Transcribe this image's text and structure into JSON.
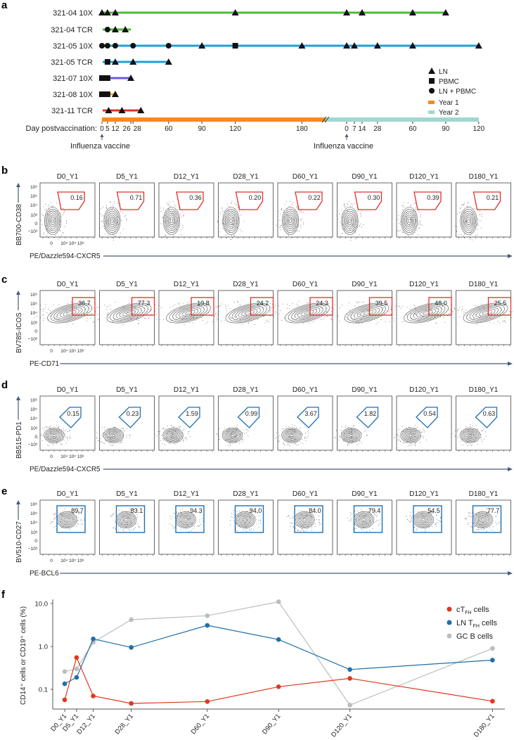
{
  "panel_labels": {
    "a": "a",
    "b": "b",
    "c": "c",
    "d": "d",
    "e": "e",
    "f": "f"
  },
  "timeline": {
    "axis_label": "Day postvaccination:",
    "vaccine_label": "Influenza vaccine",
    "year1_ticks": [
      0,
      5,
      12,
      26,
      28,
      60,
      90,
      120,
      180
    ],
    "year2_ticks": [
      0,
      7,
      14,
      28,
      60,
      90,
      120
    ],
    "legend": {
      "ln": "LN",
      "pbmc": "PBMC",
      "ln_pbmc": "LN + PBMC",
      "year1": "Year 1",
      "year2": "Year 2"
    },
    "colors": {
      "year1": "#f7891f",
      "year2": "#9fd8d0"
    },
    "rows": [
      {
        "label": "321-04 10X",
        "color": "#4cbb3a",
        "end": [
          2,
          90
        ],
        "points": [
          [
            1,
            0,
            "tri"
          ],
          [
            1,
            5,
            "tri"
          ],
          [
            1,
            12,
            "tri"
          ],
          [
            1,
            120,
            "tri"
          ],
          [
            2,
            0,
            "tri"
          ],
          [
            2,
            14,
            "tri"
          ],
          [
            2,
            60,
            "tri"
          ],
          [
            2,
            90,
            "tri"
          ]
        ]
      },
      {
        "label": "321-04 TCR",
        "color": "#4cbb3a",
        "end": [
          1,
          26
        ],
        "points": [
          [
            1,
            5,
            "circle"
          ],
          [
            1,
            12,
            "tri"
          ],
          [
            1,
            21,
            "tri"
          ]
        ]
      },
      {
        "label": "321-05 10X",
        "color": "#1ea0d6",
        "end": [
          2,
          120
        ],
        "points": [
          [
            1,
            0,
            "circle"
          ],
          [
            1,
            5,
            "circle"
          ],
          [
            1,
            12,
            "circle"
          ],
          [
            1,
            28,
            "circle"
          ],
          [
            1,
            60,
            "circle"
          ],
          [
            1,
            90,
            "tri"
          ],
          [
            1,
            120,
            "square"
          ],
          [
            1,
            180,
            "tri"
          ],
          [
            2,
            0,
            "tri"
          ],
          [
            2,
            7,
            "tri"
          ],
          [
            2,
            28,
            "tri"
          ],
          [
            2,
            60,
            "tri"
          ],
          [
            2,
            120,
            "tri"
          ]
        ]
      },
      {
        "label": "321-05 TCR",
        "color": "#1ea0d6",
        "end": [
          1,
          60
        ],
        "points": [
          [
            1,
            5,
            "square"
          ],
          [
            1,
            12,
            "tri"
          ],
          [
            1,
            28,
            "tri"
          ],
          [
            1,
            60,
            "tri"
          ]
        ]
      },
      {
        "label": "321-07 10X",
        "color": "#6a5be0",
        "end": [
          1,
          26
        ],
        "points": [
          [
            1,
            0,
            "square"
          ],
          [
            1,
            5,
            "square"
          ],
          [
            1,
            26,
            "tri"
          ]
        ]
      },
      {
        "label": "321-08 10X",
        "color": "#f2b705",
        "end": [
          1,
          12
        ],
        "points": [
          [
            1,
            0,
            "square"
          ],
          [
            1,
            5,
            "square"
          ],
          [
            1,
            12,
            "tri"
          ]
        ]
      },
      {
        "label": "321-11 TCR",
        "color": "#e0302a",
        "end": [
          1,
          35
        ],
        "points": [
          [
            1,
            6,
            "tri"
          ],
          [
            1,
            18,
            "tri"
          ],
          [
            1,
            35,
            "tri"
          ]
        ]
      }
    ]
  },
  "flow": {
    "timepoints": [
      "D0_Y1",
      "D5_Y1",
      "D12_Y1",
      "D28_Y1",
      "D60_Y1",
      "D90_Y1",
      "D120_Y1",
      "D180_Y1"
    ],
    "y_ticks": [
      "10⁶",
      "10⁵",
      "10⁴",
      "10³",
      "0",
      "−10³"
    ],
    "x_ticks": [
      "0",
      "10⁴ 10⁵ 10⁶"
    ],
    "panels": [
      {
        "id": "b",
        "y_label": "BB700-CD38",
        "x_label": "PE/Dazzle594-CXCR5",
        "gate_color": "#e0302a",
        "gate": "poly",
        "values": [
          "0.16",
          "0.71",
          "0.36",
          "0.20",
          "0.22",
          "0.30",
          "0.39",
          "0.21"
        ]
      },
      {
        "id": "c",
        "y_label": "BV785-ICOS",
        "x_label": "PE-CD71",
        "gate_color": "#e0302a",
        "gate": "rect",
        "values": [
          "36.7",
          "77.3",
          "19.8",
          "24.2",
          "24.3",
          "39.5",
          "48.0",
          "25.5"
        ]
      },
      {
        "id": "d",
        "y_label": "BB515-PD1",
        "x_label": "PE/Dazzle594-CXCR5",
        "gate_color": "#1f6fb2",
        "gate": "pent",
        "values": [
          "0.15",
          "0.23",
          "1.59",
          "0.99",
          "3.67",
          "1.82",
          "0.54",
          "0.63"
        ]
      },
      {
        "id": "e",
        "y_label": "BV510-CD27",
        "x_label": "PE-BCL6",
        "gate_color": "#1f6fb2",
        "gate": "square",
        "values": [
          "89.7",
          "83.1",
          "94.3",
          "94.0",
          "84.0",
          "79.4",
          "54.5",
          "77.7"
        ]
      }
    ]
  },
  "chart_data": {
    "type": "line",
    "title": "",
    "xlabel": "",
    "ylabel": "CD14⁺ cells or CD19⁺ cells (%)",
    "yscale": "log",
    "ylim": [
      0.035,
      13
    ],
    "y_ticks": [
      "10.0",
      "1.0",
      "0.1"
    ],
    "categories": [
      "D0_Y1",
      "D5_Y1",
      "D12_Y1",
      "D28_Y1",
      "D60_Y1",
      "D90_Y1",
      "D120_Y1",
      "D180_Y1"
    ],
    "x_days": [
      0,
      5,
      12,
      28,
      60,
      90,
      120,
      180
    ],
    "legend_position": "top-right",
    "series": [
      {
        "name": "cT_FH cells",
        "legend_main": "cT",
        "legend_sub": "FH",
        "legend_tail": " cells",
        "color": "#e0381f",
        "values": [
          0.057,
          0.55,
          0.07,
          0.047,
          0.052,
          0.115,
          0.18,
          0.053
        ]
      },
      {
        "name": "LN T_FH cells",
        "legend_main": "LN T",
        "legend_sub": "FH",
        "legend_tail": " cells",
        "color": "#1f6fa8",
        "values": [
          0.135,
          0.19,
          1.5,
          0.95,
          3.1,
          1.45,
          0.29,
          0.48
        ]
      },
      {
        "name": "GC B cells",
        "legend_main": "GC B cells",
        "legend_sub": "",
        "legend_tail": "",
        "color": "#bdbdbd",
        "values": [
          0.26,
          0.3,
          1.25,
          4.2,
          5.2,
          11,
          0.043,
          0.9
        ]
      }
    ]
  }
}
